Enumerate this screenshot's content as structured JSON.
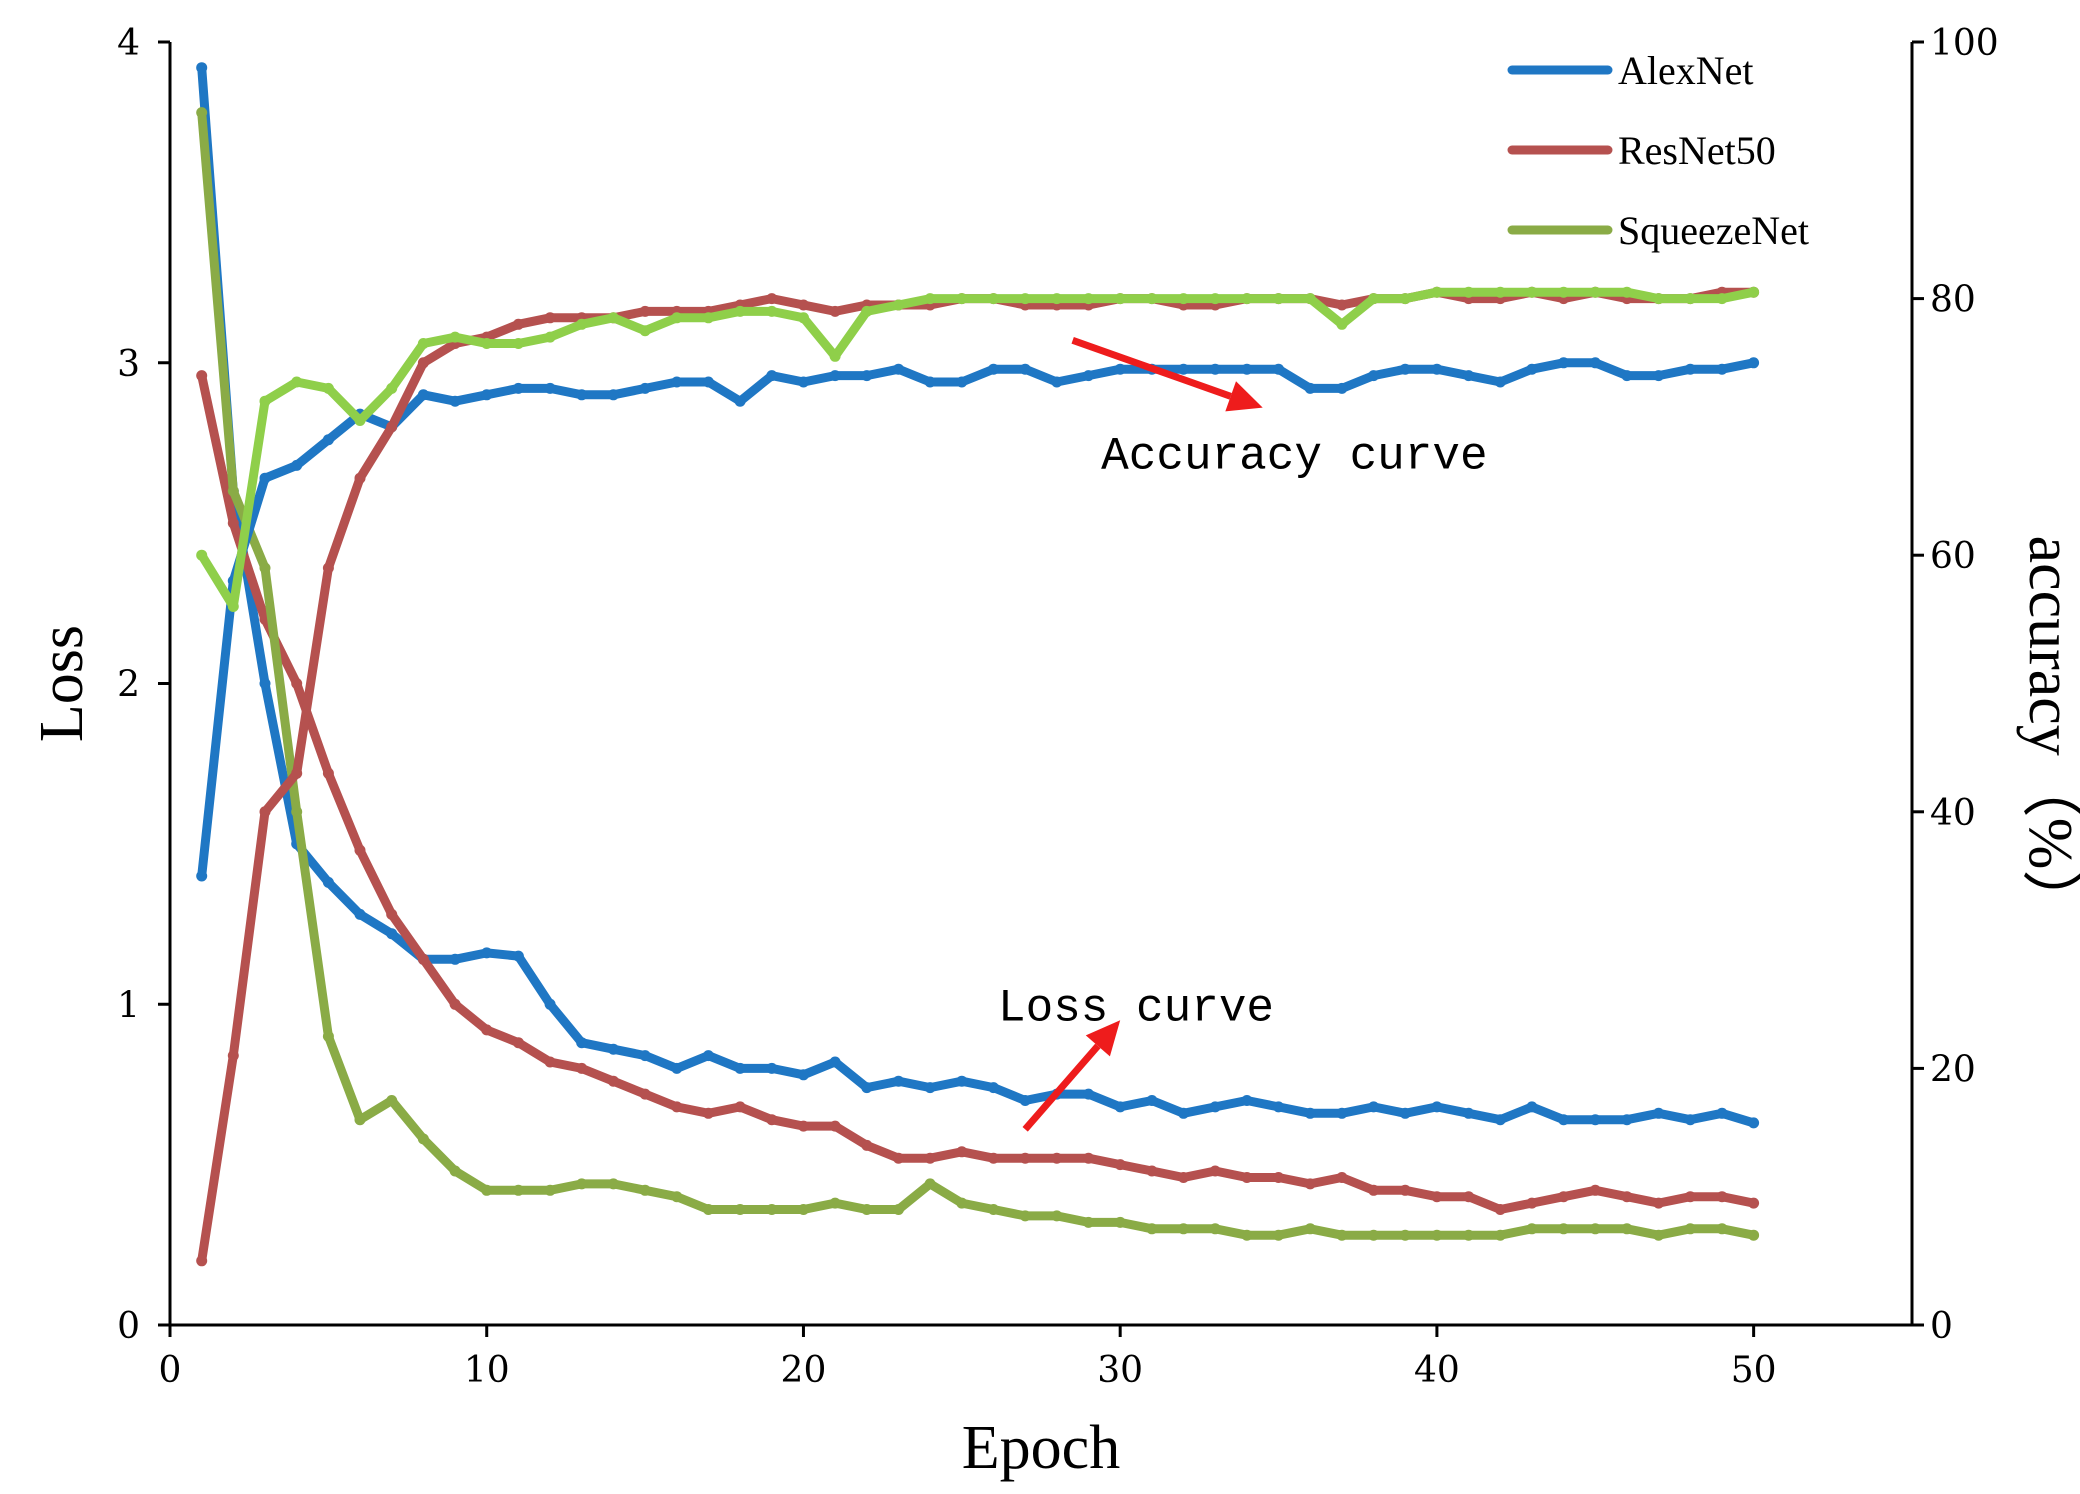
{
  "chart_data": {
    "type": "line",
    "xlabel": "Epoch",
    "ylabel_left": "Loss",
    "ylabel_right": "accuracy（%）",
    "xlim": [
      0,
      55
    ],
    "ylim_left": [
      0,
      4
    ],
    "ylim_right": [
      0,
      100
    ],
    "x_ticks": [
      0,
      10,
      20,
      30,
      40,
      50
    ],
    "y_left_ticks": [
      0,
      1,
      2,
      3,
      4
    ],
    "y_right_ticks": [
      0,
      20,
      40,
      60,
      80,
      100
    ],
    "grid": false,
    "legend_position": "top-right",
    "legend": [
      "AlexNet",
      "ResNet50",
      "SqueezeNet"
    ],
    "colors": {
      "AlexNet": "#1f77c4",
      "ResNet50": "#b5514f",
      "SqueezeNet_loss": "#8aab46",
      "SqueezeNet_acc": "#8fcf4a",
      "arrow": "#ee1c1c"
    },
    "annotations": [
      {
        "text": "Accuracy curve",
        "x": 35.5,
        "y_loss": 2.72
      },
      {
        "text": "Loss curve",
        "x": 30.5,
        "y_loss": 1.0
      }
    ],
    "arrows": [
      {
        "from": [
          28.5,
          3.07
        ],
        "to": [
          34.5,
          2.86
        ]
      },
      {
        "from": [
          27.0,
          0.61
        ],
        "to": [
          30.0,
          0.95
        ]
      }
    ],
    "series": [
      {
        "name": "AlexNet",
        "metric": "loss",
        "axis": "left",
        "x": [
          1,
          2,
          3,
          4,
          5,
          6,
          7,
          8,
          9,
          10,
          11,
          12,
          13,
          14,
          15,
          16,
          17,
          18,
          19,
          20,
          21,
          22,
          23,
          24,
          25,
          26,
          27,
          28,
          29,
          30,
          31,
          32,
          33,
          34,
          35,
          36,
          37,
          38,
          39,
          40,
          41,
          42,
          43,
          44,
          45,
          46,
          47,
          48,
          49,
          50
        ],
        "values": [
          3.92,
          2.6,
          2.0,
          1.5,
          1.38,
          1.28,
          1.22,
          1.14,
          1.14,
          1.16,
          1.15,
          1.0,
          0.88,
          0.86,
          0.84,
          0.8,
          0.84,
          0.8,
          0.8,
          0.78,
          0.82,
          0.74,
          0.76,
          0.74,
          0.76,
          0.74,
          0.7,
          0.72,
          0.72,
          0.68,
          0.7,
          0.66,
          0.68,
          0.7,
          0.68,
          0.66,
          0.66,
          0.68,
          0.66,
          0.68,
          0.66,
          0.64,
          0.68,
          0.64,
          0.64,
          0.64,
          0.66,
          0.64,
          0.66,
          0.63
        ]
      },
      {
        "name": "ResNet50",
        "metric": "loss",
        "axis": "left",
        "x": [
          1,
          2,
          3,
          4,
          5,
          6,
          7,
          8,
          9,
          10,
          11,
          12,
          13,
          14,
          15,
          16,
          17,
          18,
          19,
          20,
          21,
          22,
          23,
          24,
          25,
          26,
          27,
          28,
          29,
          30,
          31,
          32,
          33,
          34,
          35,
          36,
          37,
          38,
          39,
          40,
          41,
          42,
          43,
          44,
          45,
          46,
          47,
          48,
          49,
          50
        ],
        "values": [
          2.96,
          2.5,
          2.2,
          2.0,
          1.72,
          1.48,
          1.28,
          1.14,
          1.0,
          0.92,
          0.88,
          0.82,
          0.8,
          0.76,
          0.72,
          0.68,
          0.66,
          0.68,
          0.64,
          0.62,
          0.62,
          0.56,
          0.52,
          0.52,
          0.54,
          0.52,
          0.52,
          0.52,
          0.52,
          0.5,
          0.48,
          0.46,
          0.48,
          0.46,
          0.46,
          0.44,
          0.46,
          0.42,
          0.42,
          0.4,
          0.4,
          0.36,
          0.38,
          0.4,
          0.42,
          0.4,
          0.38,
          0.4,
          0.4,
          0.38
        ]
      },
      {
        "name": "SqueezeNet",
        "metric": "loss",
        "axis": "left",
        "x": [
          1,
          2,
          3,
          4,
          5,
          6,
          7,
          8,
          9,
          10,
          11,
          12,
          13,
          14,
          15,
          16,
          17,
          18,
          19,
          20,
          21,
          22,
          23,
          24,
          25,
          26,
          27,
          28,
          29,
          30,
          31,
          32,
          33,
          34,
          35,
          36,
          37,
          38,
          39,
          40,
          41,
          42,
          43,
          44,
          45,
          46,
          47,
          48,
          49,
          50
        ],
        "values": [
          3.78,
          2.6,
          2.36,
          1.6,
          0.9,
          0.64,
          0.7,
          0.58,
          0.48,
          0.42,
          0.42,
          0.42,
          0.44,
          0.44,
          0.42,
          0.4,
          0.36,
          0.36,
          0.36,
          0.36,
          0.38,
          0.36,
          0.36,
          0.44,
          0.38,
          0.36,
          0.34,
          0.34,
          0.32,
          0.32,
          0.3,
          0.3,
          0.3,
          0.28,
          0.28,
          0.3,
          0.28,
          0.28,
          0.28,
          0.28,
          0.28,
          0.28,
          0.3,
          0.3,
          0.3,
          0.3,
          0.28,
          0.3,
          0.3,
          0.28
        ]
      },
      {
        "name": "AlexNet",
        "metric": "accuracy",
        "axis": "right",
        "x": [
          1,
          2,
          3,
          4,
          5,
          6,
          7,
          8,
          9,
          10,
          11,
          12,
          13,
          14,
          15,
          16,
          17,
          18,
          19,
          20,
          21,
          22,
          23,
          24,
          25,
          26,
          27,
          28,
          29,
          30,
          31,
          32,
          33,
          34,
          35,
          36,
          37,
          38,
          39,
          40,
          41,
          42,
          43,
          44,
          45,
          46,
          47,
          48,
          49,
          50
        ],
        "values": [
          35,
          58,
          66,
          67,
          69,
          71,
          70,
          72.5,
          72,
          72.5,
          73,
          73,
          72.5,
          72.5,
          73,
          73.5,
          73.5,
          72,
          74,
          73.5,
          74,
          74,
          74.5,
          73.5,
          73.5,
          74.5,
          74.5,
          73.5,
          74,
          74.5,
          74.5,
          74.5,
          74.5,
          74.5,
          74.5,
          73,
          73,
          74,
          74.5,
          74.5,
          74,
          73.5,
          74.5,
          75,
          75,
          74,
          74,
          74.5,
          74.5,
          75
        ]
      },
      {
        "name": "ResNet50",
        "metric": "accuracy",
        "axis": "right",
        "x": [
          1,
          2,
          3,
          4,
          5,
          6,
          7,
          8,
          9,
          10,
          11,
          12,
          13,
          14,
          15,
          16,
          17,
          18,
          19,
          20,
          21,
          22,
          23,
          24,
          25,
          26,
          27,
          28,
          29,
          30,
          31,
          32,
          33,
          34,
          35,
          36,
          37,
          38,
          39,
          40,
          41,
          42,
          43,
          44,
          45,
          46,
          47,
          48,
          49,
          50
        ],
        "values": [
          5,
          21,
          40,
          43,
          59,
          66,
          70,
          75,
          76.5,
          77,
          78,
          78.5,
          78.5,
          78.5,
          79,
          79,
          79,
          79.5,
          80,
          79.5,
          79,
          79.5,
          79.5,
          79.5,
          80,
          80,
          79.5,
          79.5,
          79.5,
          80,
          80,
          79.5,
          79.5,
          80,
          80,
          80,
          79.5,
          80,
          80,
          80.5,
          80,
          80,
          80.5,
          80,
          80.5,
          80,
          80,
          80,
          80.5,
          80.5
        ]
      },
      {
        "name": "SqueezeNet",
        "metric": "accuracy",
        "axis": "right",
        "x": [
          1,
          2,
          3,
          4,
          5,
          6,
          7,
          8,
          9,
          10,
          11,
          12,
          13,
          14,
          15,
          16,
          17,
          18,
          19,
          20,
          21,
          22,
          23,
          24,
          25,
          26,
          27,
          28,
          29,
          30,
          31,
          32,
          33,
          34,
          35,
          36,
          37,
          38,
          39,
          40,
          41,
          42,
          43,
          44,
          45,
          46,
          47,
          48,
          49,
          50
        ],
        "values": [
          60,
          56,
          72,
          73.5,
          73,
          70.5,
          73,
          76.5,
          77,
          76.5,
          76.5,
          77,
          78,
          78.5,
          77.5,
          78.5,
          78.5,
          79,
          79,
          78.5,
          75.5,
          79,
          79.5,
          80,
          80,
          80,
          80,
          80,
          80,
          80,
          80,
          80,
          80,
          80,
          80,
          80,
          78,
          80,
          80,
          80.5,
          80.5,
          80.5,
          80.5,
          80.5,
          80.5,
          80.5,
          80,
          80,
          80,
          80.5
        ]
      }
    ]
  }
}
